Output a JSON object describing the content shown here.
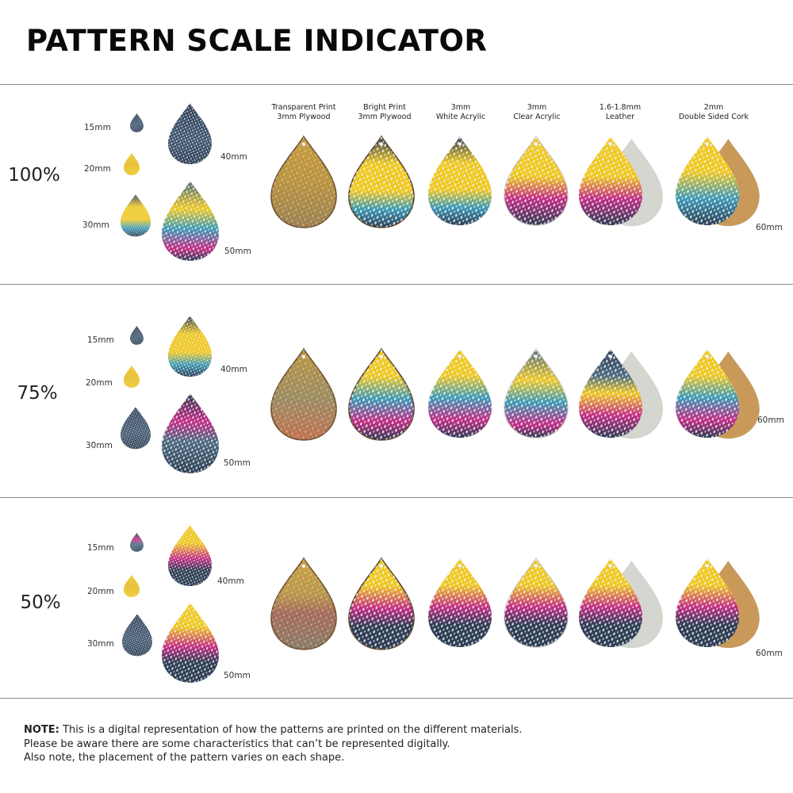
{
  "title": "PATTERN SCALE INDICATOR",
  "materials": [
    {
      "line1": "Transparent Print",
      "line2": "3mm Plywood"
    },
    {
      "line1": "Bright Print",
      "line2": "3mm Plywood"
    },
    {
      "line1": "3mm",
      "line2": "White Acrylic"
    },
    {
      "line1": "3mm",
      "line2": "Clear Acrylic"
    },
    {
      "line1": "1.6-1.8mm",
      "line2": "Leather"
    },
    {
      "line1": "2mm",
      "line2": "Double Sided Cork"
    }
  ],
  "sizes": {
    "s15": "15mm",
    "s20": "20mm",
    "s30": "30mm",
    "s40": "40mm",
    "s50": "50mm",
    "s60": "60mm"
  },
  "sections": [
    {
      "scale": "100%"
    },
    {
      "scale": "75%"
    },
    {
      "scale": "50%"
    }
  ],
  "colors": {
    "navy": "#2d3d55",
    "yellow": "#f0c81e",
    "teal": "#3a9ab8",
    "magenta": "#c42b86",
    "white_dot": "#f2f2ee",
    "plywood": "#c9a04a",
    "leather_back": "#d4d6cf",
    "cork_back": "#c9995a"
  },
  "note": {
    "bold": "NOTE:",
    "line1": " This is a digital representation of how the patterns are printed on the different materials.",
    "line2": "Please be aware there are some characteristics that can’t be represented digitally.",
    "line3": "Also note, the placement of the pattern varies on each shape."
  }
}
